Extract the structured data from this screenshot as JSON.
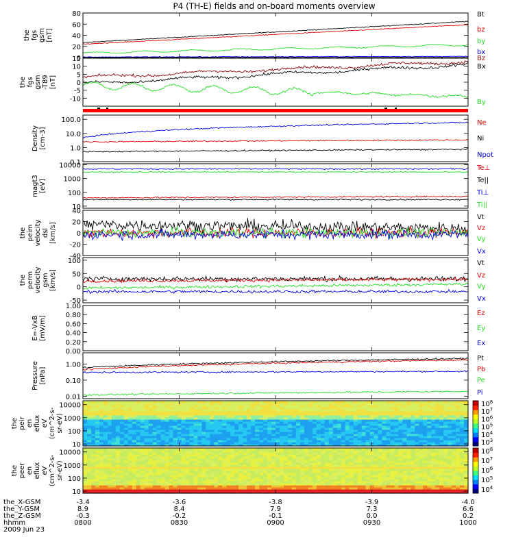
{
  "title": "P4 (TH-E) fields and on-board moments overview",
  "time_axis": {
    "ticks": [
      "0800",
      "0830",
      "0900",
      "0930",
      "1000"
    ],
    "rows": [
      {
        "label": "the_X-GSM",
        "values": [
          "-3.4",
          "-3.6",
          "-3.8",
          "-3.9",
          "-4.0"
        ]
      },
      {
        "label": "the_Y-GSM",
        "values": [
          "8.9",
          "8.4",
          "7.9",
          "7.3",
          "6.6"
        ]
      },
      {
        "label": "the_Z-GSM",
        "values": [
          "-0.3",
          "-0.2",
          "-0.1",
          "0.0",
          "0.2"
        ]
      },
      {
        "label": "hhmm",
        "values": [
          "0800",
          "0830",
          "0900",
          "0930",
          "1000"
        ]
      }
    ],
    "date": "2009 Jun 23"
  },
  "colors": {
    "black": "#000000",
    "red": "#e00000",
    "green": "#22dd22",
    "blue": "#0000e0"
  },
  "chart_data": [
    {
      "type": "line",
      "id": "fgs_mag",
      "ylabel": [
        "the",
        "fgs",
        "gsm",
        "[nT]"
      ],
      "ylim": [
        0,
        80
      ],
      "ticks": [
        "0",
        "20",
        "40",
        "60",
        "80"
      ],
      "tick_values": [
        0,
        20,
        40,
        60,
        80
      ],
      "series": [
        {
          "name": "Bt",
          "color": "#000000",
          "start": 27,
          "end": 65
        },
        {
          "name": "bz",
          "color": "#e00000",
          "start": 24,
          "end": 59
        },
        {
          "name": "by",
          "color": "#22dd22",
          "start": 8,
          "end": 23
        },
        {
          "name": "bx",
          "color": "#0000e0",
          "start": 1,
          "end": 2
        }
      ]
    },
    {
      "type": "line",
      "id": "fgs_bgsm",
      "ylabel": [
        "the",
        "fgs",
        "gsm",
        "-T89",
        "[nT]"
      ],
      "ylim": [
        -15,
        15
      ],
      "ticks": [
        "-10",
        "-5",
        "0",
        "5",
        "10",
        "15"
      ],
      "tick_values": [
        -10,
        -5,
        0,
        5,
        10,
        15
      ],
      "series": [
        {
          "name": "Bz",
          "color": "#8b0000",
          "start": 3,
          "end": 13
        },
        {
          "name": "Bx",
          "color": "#000000",
          "start": -1,
          "end": 11
        },
        {
          "name": "By",
          "color": "#22dd22",
          "start": -2,
          "end": -9
        }
      ]
    },
    {
      "type": "line",
      "id": "density",
      "ylabel": [
        "Density",
        "[cm-3]"
      ],
      "scale": "log",
      "ylim": [
        0.1,
        200
      ],
      "ticks": [
        "0.1",
        "1.0",
        "10.0",
        "100.0"
      ],
      "tick_values": [
        0.1,
        1,
        10,
        100
      ],
      "series": [
        {
          "name": "Ne",
          "color": "#e00000",
          "start": 2.5,
          "end": 3.5
        },
        {
          "name": "Ni",
          "color": "#000000",
          "start": 0.5,
          "end": 0.75
        },
        {
          "name": "Npot",
          "color": "#0000e0",
          "start": 5,
          "end": 60
        }
      ]
    },
    {
      "type": "line",
      "id": "temperature",
      "ylabel": [
        "magt3",
        "[eV]"
      ],
      "scale": "log",
      "ylim": [
        7,
        12000
      ],
      "ticks": [
        "10",
        "100",
        "1000",
        "10000"
      ],
      "tick_values": [
        10,
        100,
        1000,
        10000
      ],
      "series": [
        {
          "name": "Te⊥",
          "color": "#e00000",
          "start": 40,
          "end": 50
        },
        {
          "name": "Te||",
          "color": "#000000",
          "start": 30,
          "end": 30
        },
        {
          "name": "Ti⊥",
          "color": "#0000e0",
          "start": 5000,
          "end": 5000
        },
        {
          "name": "Ti||",
          "color": "#22dd22",
          "start": 3000,
          "end": 3000
        }
      ]
    },
    {
      "type": "line",
      "id": "peim_vel",
      "ylabel": [
        "the",
        "peim",
        "velocity",
        "dsl",
        "[km/s]"
      ],
      "ylim": [
        -40,
        40
      ],
      "ticks": [
        "-40",
        "-20",
        "0",
        "20",
        "40"
      ],
      "tick_values": [
        -40,
        -20,
        0,
        20,
        40
      ],
      "series": [
        {
          "name": "Vt",
          "color": "#000000",
          "start": 15,
          "end": 8
        },
        {
          "name": "Vz",
          "color": "#e00000",
          "start": 0,
          "end": 0
        },
        {
          "name": "Vy",
          "color": "#22dd22",
          "start": 0,
          "end": 0
        },
        {
          "name": "Vx",
          "color": "#0000e0",
          "start": -3,
          "end": -3
        }
      ]
    },
    {
      "type": "line",
      "id": "perm_vel",
      "ylabel": [
        "the",
        "perm",
        "velocity",
        "gsm",
        "[km/s]"
      ],
      "ylim": [
        -60,
        110
      ],
      "ticks": [
        "-50",
        "0",
        "50",
        "100"
      ],
      "tick_values": [
        -50,
        0,
        50,
        100
      ],
      "series": [
        {
          "name": "Vt",
          "color": "#000000",
          "start": 30,
          "end": 30
        },
        {
          "name": "Vz",
          "color": "#e00000",
          "start": 22,
          "end": 28
        },
        {
          "name": "Vy",
          "color": "#22dd22",
          "start": -5,
          "end": 10
        },
        {
          "name": "Vx",
          "color": "#0000e0",
          "start": -18,
          "end": -18
        }
      ]
    },
    {
      "type": "line",
      "id": "efield",
      "ylabel": [
        "E=-VxB",
        "[mV/m]"
      ],
      "ylim": [
        0,
        1
      ],
      "ticks": [
        "0.00",
        "0.20",
        "0.40",
        "0.60",
        "0.80",
        "1.00"
      ],
      "tick_values": [
        0,
        0.2,
        0.4,
        0.6,
        0.8,
        1
      ],
      "series": [
        {
          "name": "Ez",
          "color": "#e00000"
        },
        {
          "name": "Ey",
          "color": "#22dd22"
        },
        {
          "name": "Ex",
          "color": "#0000e0"
        }
      ]
    },
    {
      "type": "line",
      "id": "pressure",
      "ylabel": [
        "Pressure",
        "[nPa]"
      ],
      "scale": "log",
      "ylim": [
        0.007,
        5
      ],
      "ticks": [
        "0.01",
        "0.10",
        "1.00"
      ],
      "tick_values": [
        0.01,
        0.1,
        1
      ],
      "series": [
        {
          "name": "Pt",
          "color": "#000000",
          "start": 0.6,
          "end": 2.2
        },
        {
          "name": "Pb",
          "color": "#e00000",
          "start": 0.45,
          "end": 1.8
        },
        {
          "name": "Pe",
          "color": "#22dd22",
          "start": 0.012,
          "end": 0.02
        },
        {
          "name": "Pi",
          "color": "#0000e0",
          "start": 0.3,
          "end": 0.35
        }
      ]
    },
    {
      "type": "heatmap",
      "id": "peir_en",
      "ylabel": [
        "the",
        "peir",
        "en",
        "eflux",
        "eV",
        "(cm^2-s-",
        "sr-eV)"
      ],
      "scale": "log",
      "ylim": [
        7,
        20000
      ],
      "ticks": [
        "10",
        "100",
        "1000",
        "10000"
      ],
      "tick_values": [
        10,
        100,
        1000,
        10000
      ],
      "colorbar": {
        "ticks": [
          "10^3",
          "10^4",
          "10^5",
          "10^6",
          "10^7",
          "10^8"
        ]
      }
    },
    {
      "type": "heatmap",
      "id": "peer_en",
      "ylabel": [
        "the",
        "peer",
        "en",
        "eflux",
        "eV",
        "(cm^2-s-",
        "sr-eV)"
      ],
      "scale": "log",
      "ylim": [
        7,
        20000
      ],
      "ticks": [
        "10",
        "100",
        "1000",
        "10000"
      ],
      "tick_values": [
        10,
        100,
        1000,
        10000
      ],
      "colorbar": {
        "ticks": [
          "10^4",
          "10^5",
          "10^6",
          "10^7",
          "10^8"
        ]
      }
    }
  ]
}
